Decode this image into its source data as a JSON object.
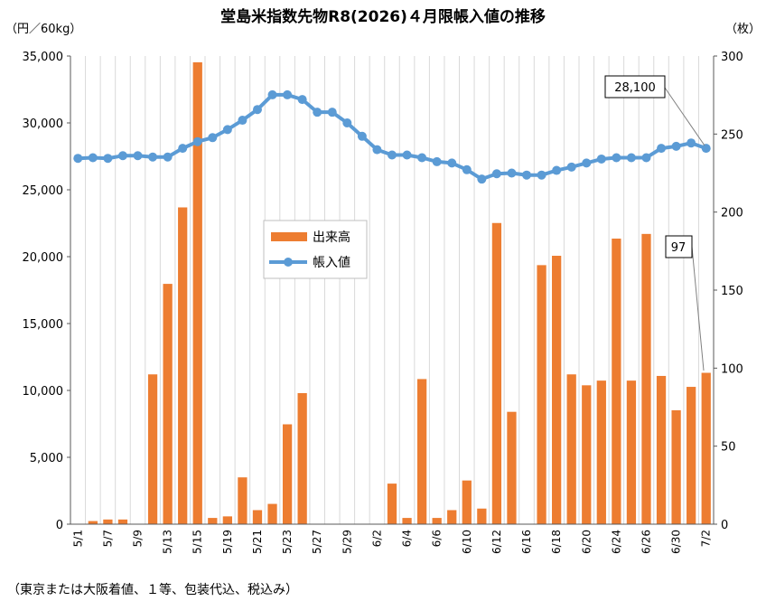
{
  "chart_data": {
    "type": "bar",
    "title": "堂島米指数先物R8(2026)４月限帳入値の推移",
    "y_left_unit": "（円／60kg）",
    "y_right_unit": "（枚）",
    "y_left_ticks": [
      "0",
      "5,000",
      "10,000",
      "15,000",
      "20,000",
      "25,000",
      "30,000",
      "35,000"
    ],
    "y_right_ticks": [
      "0",
      "50",
      "100",
      "150",
      "200",
      "250",
      "300"
    ],
    "ylim_left": [
      0,
      35000
    ],
    "ylim_right": [
      0,
      300
    ],
    "x_tick_labels": [
      "5/1",
      "5/7",
      "5/9",
      "5/13",
      "5/15",
      "5/19",
      "5/21",
      "5/23",
      "5/27",
      "5/29",
      "6/2",
      "6/4",
      "6/6",
      "6/10",
      "6/12",
      "6/16",
      "6/18",
      "6/20",
      "6/24",
      "6/26",
      "6/30",
      "7/2"
    ],
    "categories": [
      "5/1",
      "5/2",
      "5/7",
      "5/8",
      "5/9",
      "5/12",
      "5/13",
      "5/14",
      "5/15",
      "5/16",
      "5/19",
      "5/20",
      "5/21",
      "5/22",
      "5/23",
      "5/26",
      "5/27",
      "5/28",
      "5/29",
      "5/30",
      "6/2",
      "6/3",
      "6/4",
      "6/5",
      "6/6",
      "6/9",
      "6/10",
      "6/11",
      "6/12",
      "6/13",
      "6/16",
      "6/17",
      "6/18",
      "6/19",
      "6/20",
      "6/23",
      "6/24",
      "6/25",
      "6/26",
      "6/27",
      "6/30",
      "7/1",
      "7/2"
    ],
    "series": [
      {
        "name": "出来高",
        "kind": "bar",
        "axis": "right",
        "color": "#ED7D31",
        "values": [
          0,
          2,
          3,
          3,
          0,
          96,
          154,
          203,
          296,
          4,
          5,
          30,
          9,
          13,
          64,
          84,
          0,
          0,
          0,
          0,
          0,
          26,
          4,
          93,
          4,
          9,
          28,
          10,
          193,
          72,
          0,
          166,
          172,
          96,
          89,
          92,
          183,
          92,
          186,
          95,
          73,
          88,
          97
        ]
      },
      {
        "name": "帳入値",
        "kind": "line",
        "axis": "left",
        "color": "#5B9BD5",
        "values": [
          27350,
          27400,
          27350,
          27550,
          27550,
          27450,
          27450,
          28100,
          28600,
          28900,
          29500,
          30200,
          31000,
          32100,
          32100,
          31750,
          30800,
          30800,
          30000,
          29000,
          28000,
          27600,
          27600,
          27400,
          27100,
          27000,
          26500,
          25800,
          26200,
          26250,
          26100,
          26100,
          26450,
          26700,
          27000,
          27300,
          27400,
          27400,
          27400,
          28100,
          28250,
          28500,
          28100
        ]
      }
    ],
    "callouts": [
      {
        "text": "28,100",
        "series": "帳入値"
      },
      {
        "text": "97",
        "series": "出来高"
      }
    ],
    "legend_position": "center-left",
    "grid": "vertical"
  },
  "footnote": "（東京または大阪着値、１等、包装代込、税込み）"
}
